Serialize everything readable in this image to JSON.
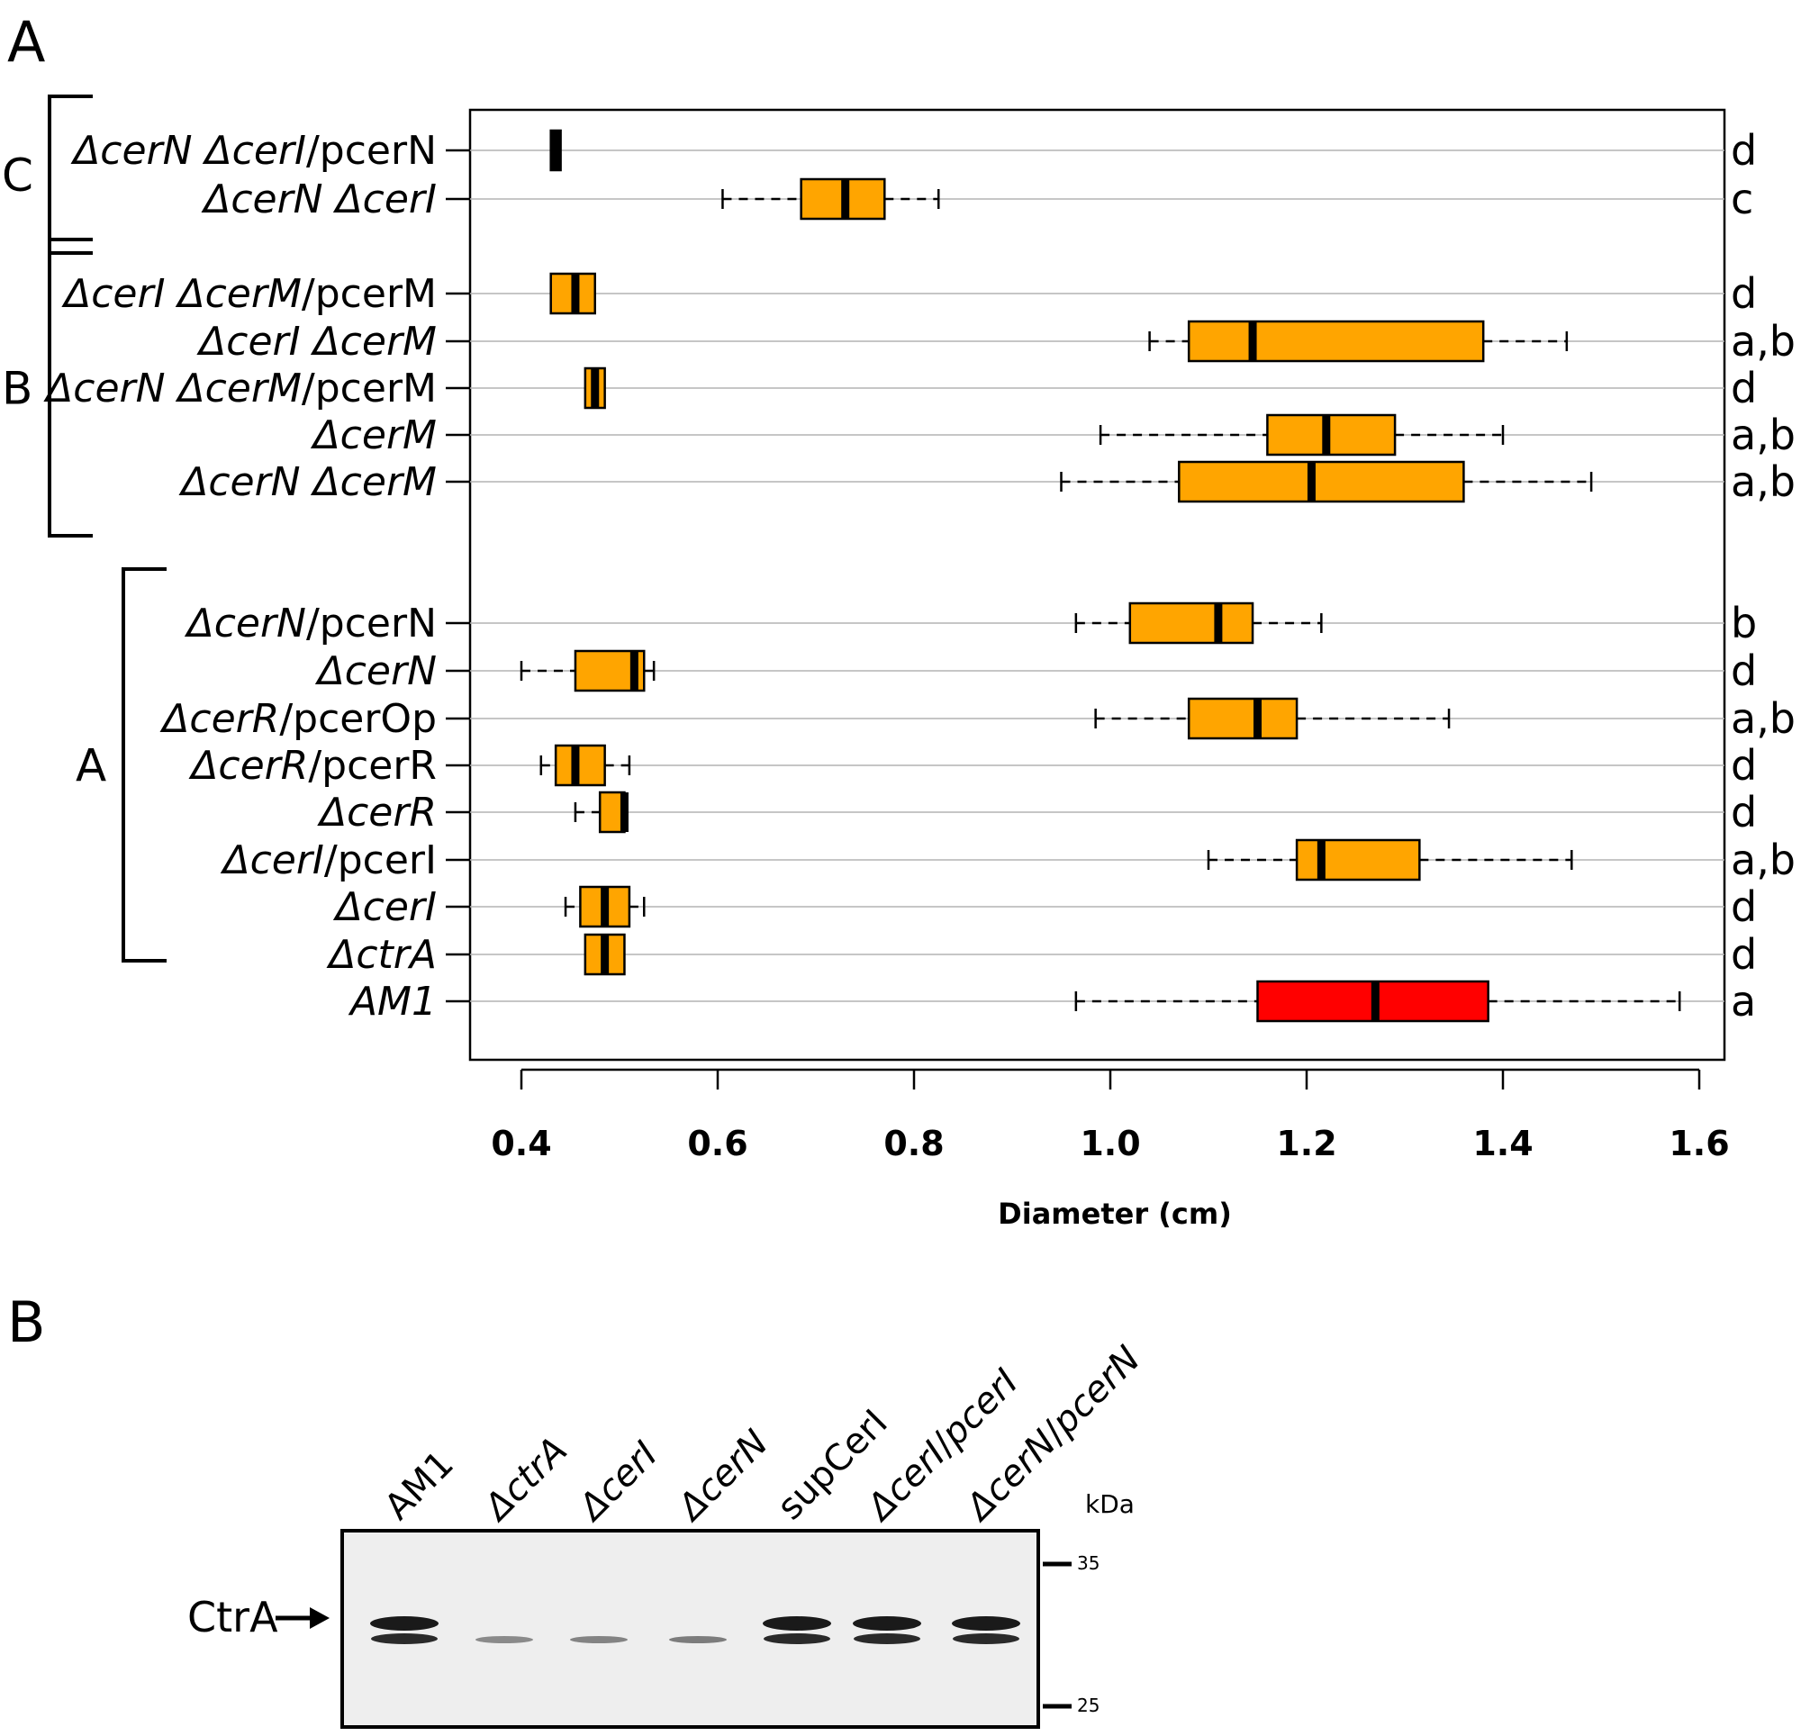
{
  "panel_a_label": "A",
  "panel_b_label": "B",
  "chart_data": {
    "type": "box",
    "xlabel": "Diameter (cm)",
    "xlim": [
      0.35,
      1.6
    ],
    "xticks": [
      "0.4",
      "0.6",
      "0.8",
      "1.0",
      "1.2",
      "1.4",
      "1.6"
    ],
    "xtick_values": [
      0.4,
      0.6,
      0.8,
      1.0,
      1.2,
      1.4,
      1.6
    ],
    "orientation": "horizontal",
    "grid": "horizontal",
    "series": [
      {
        "label_main": "ΔcerN ΔcerI",
        "label_suffix": "/pcerN",
        "sig": "d",
        "min": 0.43,
        "q1": 0.43,
        "median": 0.435,
        "q3": 0.44,
        "max": 0.44,
        "color": "#000000"
      },
      {
        "label_main": "ΔcerN ΔcerI",
        "label_suffix": "",
        "sig": "c",
        "min": 0.605,
        "q1": 0.685,
        "median": 0.73,
        "q3": 0.77,
        "max": 0.825,
        "color": "#ffa500"
      },
      {
        "label_main": "ΔcerI ΔcerM",
        "label_suffix": "/pcerM",
        "sig": "d",
        "min": 0.43,
        "q1": 0.43,
        "median": 0.455,
        "q3": 0.475,
        "max": 0.475,
        "color": "#ffa500"
      },
      {
        "label_main": "ΔcerI ΔcerM",
        "label_suffix": "",
        "sig": "a,b",
        "min": 1.04,
        "q1": 1.08,
        "median": 1.145,
        "q3": 1.38,
        "max": 1.465,
        "color": "#ffa500"
      },
      {
        "label_main": "ΔcerN ΔcerM",
        "label_suffix": "/pcerM",
        "sig": "d",
        "min": 0.465,
        "q1": 0.465,
        "median": 0.475,
        "q3": 0.485,
        "max": 0.485,
        "color": "#ffa500"
      },
      {
        "label_main": "ΔcerM",
        "label_suffix": "",
        "sig": "a,b",
        "min": 0.99,
        "q1": 1.16,
        "median": 1.22,
        "q3": 1.29,
        "max": 1.4,
        "color": "#ffa500"
      },
      {
        "label_main": "ΔcerN ΔcerM",
        "label_suffix": "",
        "sig": "a,b",
        "min": 0.95,
        "q1": 1.07,
        "median": 1.205,
        "q3": 1.36,
        "max": 1.49,
        "color": "#ffa500"
      },
      {
        "label_main": "ΔcerN",
        "label_suffix": "/pcerN",
        "sig": "b",
        "min": 0.965,
        "q1": 1.02,
        "median": 1.11,
        "q3": 1.145,
        "max": 1.215,
        "color": "#ffa500"
      },
      {
        "label_main": "ΔcerN",
        "label_suffix": "",
        "sig": "d",
        "min": 0.4,
        "q1": 0.455,
        "median": 0.515,
        "q3": 0.525,
        "max": 0.535,
        "color": "#ffa500"
      },
      {
        "label_main": "ΔcerR",
        "label_suffix": "/pcerOp",
        "sig": "a,b",
        "min": 0.985,
        "q1": 1.08,
        "median": 1.15,
        "q3": 1.19,
        "max": 1.345,
        "color": "#ffa500"
      },
      {
        "label_main": "ΔcerR",
        "label_suffix": "/pcerR",
        "sig": "d",
        "min": 0.42,
        "q1": 0.435,
        "median": 0.455,
        "q3": 0.485,
        "max": 0.51,
        "color": "#ffa500"
      },
      {
        "label_main": "ΔcerR",
        "label_suffix": "",
        "sig": "d",
        "min": 0.455,
        "q1": 0.48,
        "median": 0.505,
        "q3": 0.505,
        "max": 0.505,
        "color": "#ffa500"
      },
      {
        "label_main": "ΔcerI",
        "label_suffix": "/pcerI",
        "sig": "a,b",
        "min": 1.1,
        "q1": 1.19,
        "median": 1.215,
        "q3": 1.315,
        "max": 1.47,
        "color": "#ffa500"
      },
      {
        "label_main": "ΔcerI",
        "label_suffix": "",
        "sig": "d",
        "min": 0.445,
        "q1": 0.46,
        "median": 0.485,
        "q3": 0.51,
        "max": 0.525,
        "color": "#ffa500"
      },
      {
        "label_main": "ΔctrA",
        "label_suffix": "",
        "sig": "d",
        "min": 0.465,
        "q1": 0.465,
        "median": 0.485,
        "q3": 0.505,
        "max": 0.505,
        "color": "#ffa500"
      },
      {
        "label_main": "AM1",
        "label_suffix": "",
        "sig": "a",
        "min": 0.965,
        "q1": 1.15,
        "median": 1.27,
        "q3": 1.385,
        "max": 1.58,
        "color": "#ff0000"
      }
    ],
    "groups": [
      {
        "label": "C",
        "first_row": 0,
        "last_row": 1
      },
      {
        "label": "B",
        "first_row": 2,
        "last_row": 6
      },
      {
        "label": "A",
        "first_row": 7,
        "last_row": 13
      }
    ]
  },
  "blot": {
    "lanes": [
      "AM1",
      "ΔctrA",
      "ΔcerI",
      "ΔcerN",
      "supCerI",
      "ΔcerI/pcerI",
      "ΔcerN/pcerN"
    ],
    "band_label": "CtrA",
    "kda_label": "kDa",
    "markers": [
      "35",
      "25"
    ],
    "band_strength": [
      1.0,
      0.35,
      0.4,
      0.45,
      1.0,
      1.0,
      1.0
    ]
  }
}
